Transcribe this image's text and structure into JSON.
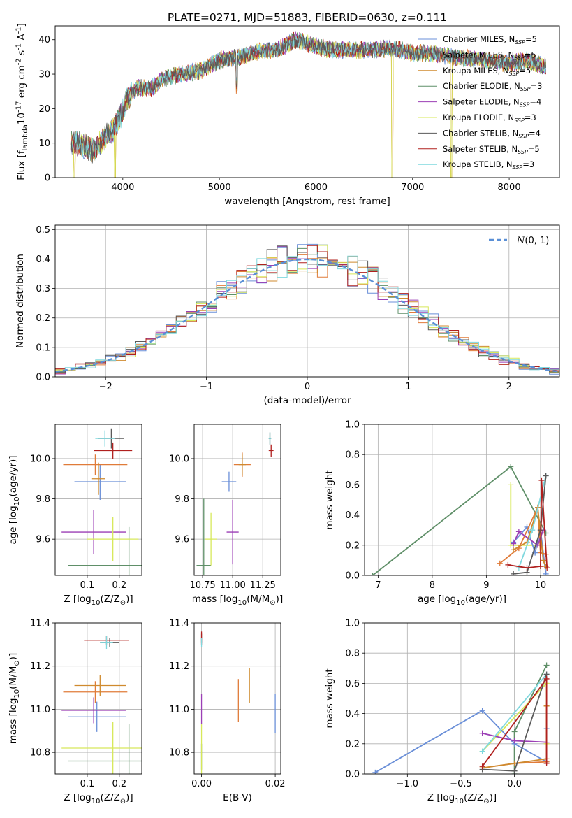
{
  "figure_title": "PLATE=0271, MJD=51883, FIBERID=0630, z=0.111",
  "series_styles": [
    {
      "label": "Chabrier MILES, N$_{SSP}$=5",
      "sub": "SSP",
      "n": "5",
      "name": "Chabrier MILES, N",
      "color": "#6a8fd8"
    },
    {
      "label": "Salpeter MILES, N$_{SSP}$=5",
      "sub": "SSP",
      "n": "5",
      "name": "Salpeter MILES, N",
      "color": "#e07b39"
    },
    {
      "label": "Kroupa MILES, N$_{SSP}$=5",
      "sub": "SSP",
      "n": "5",
      "name": "Kroupa MILES, N",
      "color": "#cf8a2e"
    },
    {
      "label": "Chabrier ELODIE, N$_{SSP}$=3",
      "sub": "SSP",
      "n": "3",
      "name": "Chabrier ELODIE, N",
      "color": "#5f8f68"
    },
    {
      "label": "Salpeter ELODIE, N$_{SSP}$=4",
      "sub": "SSP",
      "n": "4",
      "name": "Salpeter ELODIE, N",
      "color": "#9b3fb5"
    },
    {
      "label": "Kroupa ELODIE, N$_{SSP}$=3",
      "sub": "SSP",
      "n": "3",
      "name": "Kroupa ELODIE, N",
      "color": "#d7e85a"
    },
    {
      "label": "Chabrier STELIB, N$_{SSP}$=4",
      "sub": "SSP",
      "n": "4",
      "name": "Chabrier STELIB, N",
      "color": "#5a5a5a"
    },
    {
      "label": "Salpeter STELIB, N$_{SSP}$=5",
      "sub": "SSP",
      "n": "5",
      "name": "Salpeter STELIB, N",
      "color": "#b0201e"
    },
    {
      "label": "Kroupa STELIB, N$_{SSP}$=3",
      "sub": "SSP",
      "n": "3",
      "name": "Kroupa STELIB, N",
      "color": "#7fd8de"
    }
  ],
  "chart_data": [
    {
      "id": "spectrum",
      "type": "line",
      "xlabel": "wavelength [Angstrom, rest frame]",
      "ylabel": "Flux [f$_\\lambda$10$^{-17}$ erg cm$^{-2}$ s$^{-1}$ A$^{-1}$]",
      "xlim": [
        3300,
        8520
      ],
      "ylim": [
        0,
        44
      ],
      "xticks": [
        4000,
        5000,
        6000,
        7000,
        8000
      ],
      "yticks": [
        0,
        10,
        20,
        30,
        40
      ],
      "legend": "upper right",
      "data_range": [
        3460,
        8380
      ],
      "anchors": [
        [
          3460,
          10.2
        ],
        [
          3600,
          9.2
        ],
        [
          3700,
          7.8
        ],
        [
          3800,
          11.2
        ],
        [
          3900,
          14
        ],
        [
          3970,
          17.5
        ],
        [
          4050,
          23
        ],
        [
          4150,
          26
        ],
        [
          4300,
          26
        ],
        [
          4400,
          28.5
        ],
        [
          4600,
          30
        ],
        [
          4800,
          31
        ],
        [
          5000,
          34
        ],
        [
          5200,
          35
        ],
        [
          5400,
          36.5
        ],
        [
          5600,
          37
        ],
        [
          5800,
          40
        ],
        [
          6000,
          38
        ],
        [
          6200,
          37
        ],
        [
          6500,
          37
        ],
        [
          6800,
          37.5
        ],
        [
          7000,
          36
        ],
        [
          7200,
          36
        ],
        [
          7400,
          35
        ],
        [
          7600,
          34.5
        ],
        [
          7800,
          34
        ],
        [
          8000,
          33
        ],
        [
          8200,
          34
        ],
        [
          8380,
          32
        ]
      ],
      "dips": [
        [
          3500,
          0
        ],
        [
          3920,
          0
        ],
        [
          6790,
          0
        ],
        [
          7400,
          0
        ],
        [
          5180,
          25
        ]
      ]
    },
    {
      "id": "residuals",
      "type": "histogram",
      "xlabel": "(data-model)/error",
      "ylabel": "Normed distribution",
      "xlim": [
        -2.5,
        2.5
      ],
      "ylim": [
        0,
        0.515
      ],
      "xticks": [
        -2,
        -1,
        0,
        1,
        2
      ],
      "yticks": [
        0.0,
        0.1,
        0.2,
        0.3,
        0.4,
        0.5
      ],
      "bin_width": 0.1,
      "legend_label": "$\\mathcal{N}(0,1)$",
      "legend_text": "(0, 1)",
      "legend": "upper right",
      "gaussian": {
        "mean": 0,
        "sigma": 1
      }
    },
    {
      "id": "age_vs_Z",
      "type": "errorbar",
      "xlabel": "Z [log$_{10}$(Z/Z$_\\odot$)]",
      "ylabel": "age  [log$_{10}$(age/yr)]",
      "xlim": [
        0.0,
        0.27
      ],
      "ylim": [
        9.42,
        10.17
      ],
      "xticks": [
        0.1,
        0.2
      ],
      "yticks": [
        9.6,
        9.8,
        10.0
      ],
      "points": [
        {
          "s": 0,
          "x": 0.14,
          "y": 9.885,
          "xerr": 0.08,
          "yerr": 0.09
        },
        {
          "s": 1,
          "x": 0.125,
          "y": 9.97,
          "xerr": 0.1,
          "yerr": 0.05
        },
        {
          "s": 2,
          "x": 0.135,
          "y": 9.9,
          "xerr": 0.02,
          "yerr": 0.08
        },
        {
          "s": 3,
          "x": 0.23,
          "y": 9.47,
          "xerr": 0.19,
          "yerr": 0.19
        },
        {
          "s": 4,
          "x": 0.12,
          "y": 9.635,
          "xerr": 0.1,
          "yerr": 0.11
        },
        {
          "s": 5,
          "x": 0.18,
          "y": 9.6,
          "xerr": 0.08,
          "yerr": 0.11
        },
        {
          "s": 6,
          "x": 0.175,
          "y": 10.1,
          "xerr": 0.04,
          "yerr": 0.05
        },
        {
          "s": 7,
          "x": 0.18,
          "y": 10.04,
          "xerr": 0.06,
          "yerr": 0.04
        },
        {
          "s": 8,
          "x": 0.155,
          "y": 10.1,
          "xerr": 0.03,
          "yerr": 0.04
        }
      ]
    },
    {
      "id": "age_vs_mass",
      "type": "errorbar",
      "xlabel": "mass [log$_{10}$(M/M$_\\odot$)]",
      "ylabel": "",
      "xlim": [
        10.68,
        11.4
      ],
      "ylim": [
        9.42,
        10.17
      ],
      "xticks": [
        10.75,
        11.0,
        11.25
      ],
      "yticks": [
        9.6,
        9.8,
        10.0
      ],
      "points": [
        {
          "s": 0,
          "x": 10.97,
          "y": 9.885,
          "xerr": 0.06,
          "yerr": 0.05
        },
        {
          "s": 1,
          "x": 11.08,
          "y": 9.97,
          "xerr": 0.07,
          "yerr": 0.06
        },
        {
          "s": 2,
          "x": 11.08,
          "y": 9.97,
          "xerr": 0.03,
          "yerr": 0.05
        },
        {
          "s": 3,
          "x": 10.76,
          "y": 9.47,
          "xerr": 0.06,
          "yerr": 0.33
        },
        {
          "s": 4,
          "x": 11.0,
          "y": 9.635,
          "xerr": 0.05,
          "yerr": 0.16
        },
        {
          "s": 5,
          "x": 10.82,
          "y": 9.6,
          "xerr": 0.05,
          "yerr": 0.13
        },
        {
          "s": 6,
          "x": 11.31,
          "y": 10.1,
          "xerr": 0.01,
          "yerr": 0.03
        },
        {
          "s": 7,
          "x": 11.32,
          "y": 10.04,
          "xerr": 0.02,
          "yerr": 0.03
        },
        {
          "s": 8,
          "x": 11.31,
          "y": 10.1,
          "xerr": 0.01,
          "yerr": 0.03
        }
      ]
    },
    {
      "id": "weight_vs_age",
      "type": "line",
      "xlabel": "age  [log$_{10}$(age/yr)]",
      "ylabel": "mass weight",
      "xlim": [
        6.75,
        10.35
      ],
      "ylim": [
        0.0,
        1.0
      ],
      "xticks": [
        7,
        8,
        9,
        10
      ],
      "yticks": [
        0.0,
        0.2,
        0.4,
        0.6,
        0.8,
        1.0
      ],
      "series": [
        {
          "s": 0,
          "x": [
            9.5,
            9.75,
            9.9,
            10.0,
            10.1
          ],
          "y": [
            0.22,
            0.32,
            0.15,
            0.3,
            0.01
          ]
        },
        {
          "s": 1,
          "x": [
            9.25,
            9.6,
            9.95,
            10.0,
            10.1
          ],
          "y": [
            0.08,
            0.18,
            0.45,
            0.15,
            0.14
          ]
        },
        {
          "s": 2,
          "x": [
            9.5,
            9.75,
            9.95,
            10.05,
            10.1
          ],
          "y": [
            0.17,
            0.22,
            0.45,
            0.1,
            0.06
          ]
        },
        {
          "s": 3,
          "x": [
            6.9,
            9.45,
            10.1
          ],
          "y": [
            0.0,
            0.72,
            0.28
          ]
        },
        {
          "s": 4,
          "x": [
            9.5,
            9.6,
            9.95,
            10.05
          ],
          "y": [
            0.21,
            0.29,
            0.2,
            0.3
          ]
        },
        {
          "s": 5,
          "x": [
            9.45,
            9.45,
            10.0
          ],
          "y": [
            0.6,
            0.2,
            0.2
          ]
        },
        {
          "s": 6,
          "x": [
            9.5,
            9.75,
            10.0,
            10.1
          ],
          "y": [
            0.01,
            0.02,
            0.3,
            0.66
          ]
        },
        {
          "s": 7,
          "x": [
            9.4,
            9.75,
            10.0,
            10.02,
            10.12
          ],
          "y": [
            0.07,
            0.05,
            0.06,
            0.63,
            0.05
          ]
        },
        {
          "s": 8,
          "x": [
            9.6,
            9.85,
            10.1
          ],
          "y": [
            0.05,
            0.3,
            0.66
          ]
        }
      ]
    },
    {
      "id": "mass_vs_Z",
      "type": "errorbar",
      "xlabel": "Z [log$_{10}$(Z/Z$_\\odot$)]",
      "ylabel": "mass [log$_{10}$(M/M$_\\odot$)]",
      "xlim": [
        0.0,
        0.27
      ],
      "ylim": [
        10.7,
        11.4
      ],
      "xticks": [
        0.1,
        0.2
      ],
      "yticks": [
        10.8,
        11.0,
        11.2,
        11.4
      ],
      "points": [
        {
          "s": 0,
          "x": 0.13,
          "y": 10.965,
          "xerr": 0.09,
          "yerr": 0.07
        },
        {
          "s": 1,
          "x": 0.125,
          "y": 11.08,
          "xerr": 0.1,
          "yerr": 0.05
        },
        {
          "s": 2,
          "x": 0.14,
          "y": 11.11,
          "xerr": 0.08,
          "yerr": 0.05
        },
        {
          "s": 3,
          "x": 0.23,
          "y": 10.76,
          "xerr": 0.19,
          "yerr": 0.17
        },
        {
          "s": 4,
          "x": 0.12,
          "y": 10.995,
          "xerr": 0.1,
          "yerr": 0.06
        },
        {
          "s": 5,
          "x": 0.18,
          "y": 10.82,
          "xerr": 0.16,
          "yerr": 0.12
        },
        {
          "s": 6,
          "x": 0.17,
          "y": 11.31,
          "xerr": 0.03,
          "yerr": 0.02
        },
        {
          "s": 7,
          "x": 0.16,
          "y": 11.32,
          "xerr": 0.07,
          "yerr": 0.02
        },
        {
          "s": 8,
          "x": 0.16,
          "y": 11.31,
          "xerr": 0.02,
          "yerr": 0.03
        }
      ]
    },
    {
      "id": "mass_vs_EBV",
      "type": "errorbar",
      "xlabel": "E(B-V)",
      "ylabel": "",
      "xlim": [
        -0.002,
        0.0215
      ],
      "ylim": [
        10.7,
        11.4
      ],
      "xticks": [
        0.0,
        0.02
      ],
      "yticks": [
        10.8,
        11.0,
        11.2,
        11.4
      ],
      "points": [
        {
          "s": 0,
          "x": 0.02,
          "y": 10.98,
          "xerr": 0,
          "yerr": 0.09
        },
        {
          "s": 1,
          "x": 0.01,
          "y": 11.04,
          "xerr": 0,
          "yerr": 0.1
        },
        {
          "s": 2,
          "x": 0.013,
          "y": 11.11,
          "xerr": 0,
          "yerr": 0.08
        },
        {
          "s": 3,
          "x": 0.0,
          "y": 10.78,
          "xerr": 0,
          "yerr": 0.06
        },
        {
          "s": 4,
          "x": 0.0,
          "y": 11.0,
          "xerr": 0,
          "yerr": 0.07
        },
        {
          "s": 5,
          "x": 0.0,
          "y": 10.81,
          "xerr": 0,
          "yerr": 0.12
        },
        {
          "s": 6,
          "x": 0.0,
          "y": 11.33,
          "xerr": 0,
          "yerr": 0.02
        },
        {
          "s": 7,
          "x": 0.0,
          "y": 11.33,
          "xerr": 0,
          "yerr": 0.03
        },
        {
          "s": 8,
          "x": 0.0,
          "y": 11.31,
          "xerr": 0,
          "yerr": 0.02
        }
      ]
    },
    {
      "id": "weight_vs_Z",
      "type": "line",
      "xlabel": "Z [log$_{10}$(Z/Z$_\\odot$)]",
      "ylabel": "mass weight",
      "xlim": [
        -1.4,
        0.42
      ],
      "ylim": [
        0.0,
        1.0
      ],
      "xticks": [
        -1.0,
        -0.5,
        0.0
      ],
      "yticks": [
        0.0,
        0.2,
        0.4,
        0.6,
        0.8,
        1.0
      ],
      "series": [
        {
          "s": 0,
          "x": [
            -1.3,
            -0.3,
            0.0,
            0.3,
            0.3
          ],
          "y": [
            0.01,
            0.42,
            0.2,
            0.08,
            0.3
          ]
        },
        {
          "s": 1,
          "x": [
            -0.3,
            0.0,
            0.3,
            0.3
          ],
          "y": [
            0.04,
            0.07,
            0.08,
            0.45
          ]
        },
        {
          "s": 2,
          "x": [
            -0.3,
            0.0,
            0.3,
            0.3
          ],
          "y": [
            0.04,
            0.07,
            0.1,
            0.45
          ]
        },
        {
          "s": 3,
          "x": [
            0.0,
            0.0,
            0.3
          ],
          "y": [
            0.0,
            0.28,
            0.72
          ]
        },
        {
          "s": 4,
          "x": [
            -0.3,
            0.0,
            0.3
          ],
          "y": [
            0.27,
            0.22,
            0.21
          ]
        },
        {
          "s": 5,
          "x": [
            -0.3,
            0.3,
            0.3
          ],
          "y": [
            0.15,
            0.6,
            0.2
          ]
        },
        {
          "s": 6,
          "x": [
            -0.3,
            0.0,
            0.3
          ],
          "y": [
            0.03,
            0.02,
            0.66
          ]
        },
        {
          "s": 7,
          "x": [
            -0.3,
            0.3,
            0.3
          ],
          "y": [
            0.05,
            0.63,
            0.07
          ]
        },
        {
          "s": 8,
          "x": [
            -0.3,
            0.3
          ],
          "y": [
            0.15,
            0.66
          ]
        }
      ]
    }
  ]
}
